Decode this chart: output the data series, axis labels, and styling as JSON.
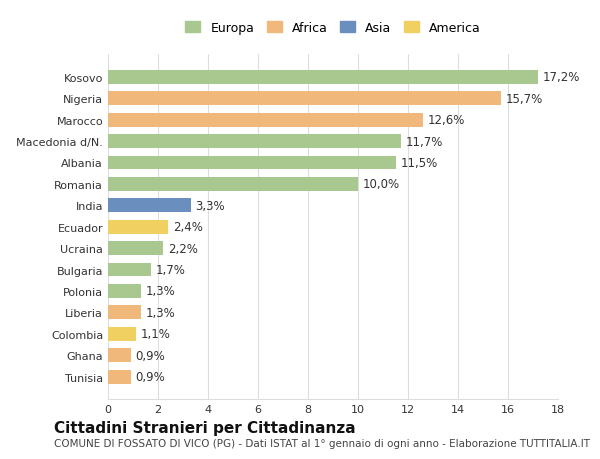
{
  "countries": [
    "Kosovo",
    "Nigeria",
    "Marocco",
    "Macedonia d/N.",
    "Albania",
    "Romania",
    "India",
    "Ecuador",
    "Ucraina",
    "Bulgaria",
    "Polonia",
    "Liberia",
    "Colombia",
    "Ghana",
    "Tunisia"
  ],
  "values": [
    17.2,
    15.7,
    12.6,
    11.7,
    11.5,
    10.0,
    3.3,
    2.4,
    2.2,
    1.7,
    1.3,
    1.3,
    1.1,
    0.9,
    0.9
  ],
  "labels": [
    "17,2%",
    "15,7%",
    "12,6%",
    "11,7%",
    "11,5%",
    "10,0%",
    "3,3%",
    "2,4%",
    "2,2%",
    "1,7%",
    "1,3%",
    "1,3%",
    "1,1%",
    "0,9%",
    "0,9%"
  ],
  "continents": [
    "Europa",
    "Africa",
    "Africa",
    "Europa",
    "Europa",
    "Europa",
    "Asia",
    "America",
    "Europa",
    "Europa",
    "Europa",
    "Africa",
    "America",
    "Africa",
    "Africa"
  ],
  "continent_colors": {
    "Europa": "#a8c890",
    "Africa": "#f0b87a",
    "Asia": "#6a8fbf",
    "America": "#f0d060"
  },
  "legend_order": [
    "Europa",
    "Africa",
    "Asia",
    "America"
  ],
  "title": "Cittadini Stranieri per Cittadinanza",
  "subtitle": "COMUNE DI FOSSATO DI VICO (PG) - Dati ISTAT al 1° gennaio di ogni anno - Elaborazione TUTTITALIA.IT",
  "xlim": [
    0,
    18
  ],
  "xticks": [
    0,
    2,
    4,
    6,
    8,
    10,
    12,
    14,
    16,
    18
  ],
  "background_color": "#ffffff",
  "grid_color": "#dddddd",
  "bar_height": 0.65,
  "label_fontsize": 8.5,
  "title_fontsize": 11,
  "subtitle_fontsize": 7.5,
  "tick_fontsize": 8,
  "legend_fontsize": 9
}
